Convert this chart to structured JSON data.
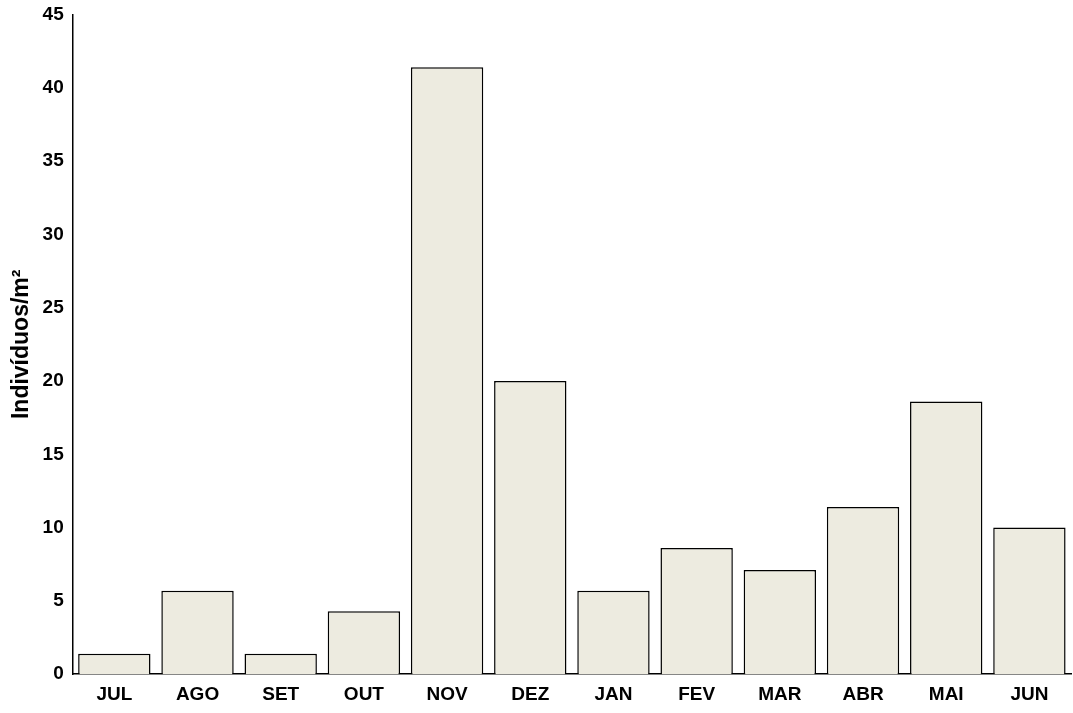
{
  "chart_data": {
    "type": "bar",
    "ylabel": "Indivíduos/m²",
    "categories": [
      "JUL",
      "AGO",
      "SET",
      "OUT",
      "NOV",
      "DEZ",
      "JAN",
      "FEV",
      "MAR",
      "ABR",
      "MAI",
      "JUN"
    ],
    "values": [
      1.4,
      5.7,
      1.4,
      4.3,
      41.4,
      20,
      5.7,
      8.6,
      7.1,
      11.4,
      18.6,
      10
    ],
    "color": "#edebe0",
    "ylim": [
      0,
      45
    ],
    "yticks": [
      0,
      5,
      10,
      15,
      20,
      25,
      30,
      35,
      40,
      45
    ],
    "grid": false,
    "legend": false
  }
}
